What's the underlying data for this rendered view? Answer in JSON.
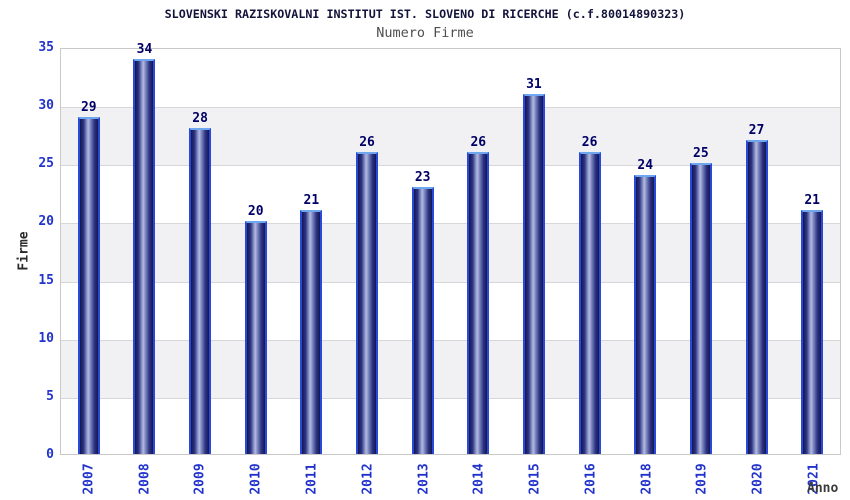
{
  "chart_data": {
    "type": "bar",
    "title": "SLOVENSKI RAZISKOVALNI INSTITUT IST. SLOVENO DI RICERCHE (c.f.80014890323)",
    "subtitle": "Numero Firme",
    "xlabel": "Anno",
    "ylabel": "Firme",
    "categories": [
      "2007",
      "2008",
      "2009",
      "2010",
      "2011",
      "2012",
      "2013",
      "2014",
      "2015",
      "2016",
      "2018",
      "2019",
      "2020",
      "2021"
    ],
    "values": [
      29,
      34,
      28,
      20,
      21,
      26,
      23,
      26,
      31,
      26,
      24,
      25,
      27,
      21
    ],
    "ylim": [
      0,
      35
    ],
    "yticks": [
      0,
      5,
      10,
      15,
      20,
      25,
      30,
      35
    ],
    "grid": true,
    "band_ranges": [
      [
        5,
        10
      ],
      [
        15,
        20
      ],
      [
        25,
        30
      ]
    ],
    "legend": "none",
    "colors": {
      "bar_dark": "#131750",
      "bar_light": "#b3bae2",
      "bar_border": "#2b49d8",
      "bar_top": "#6ea6ef",
      "tick_label": "#2233cc",
      "value_label": "#000066",
      "band": "#f1f1f3",
      "gridline": "#d7d7d9",
      "title": "#13133b",
      "subtitle": "#4f4f4f"
    }
  }
}
